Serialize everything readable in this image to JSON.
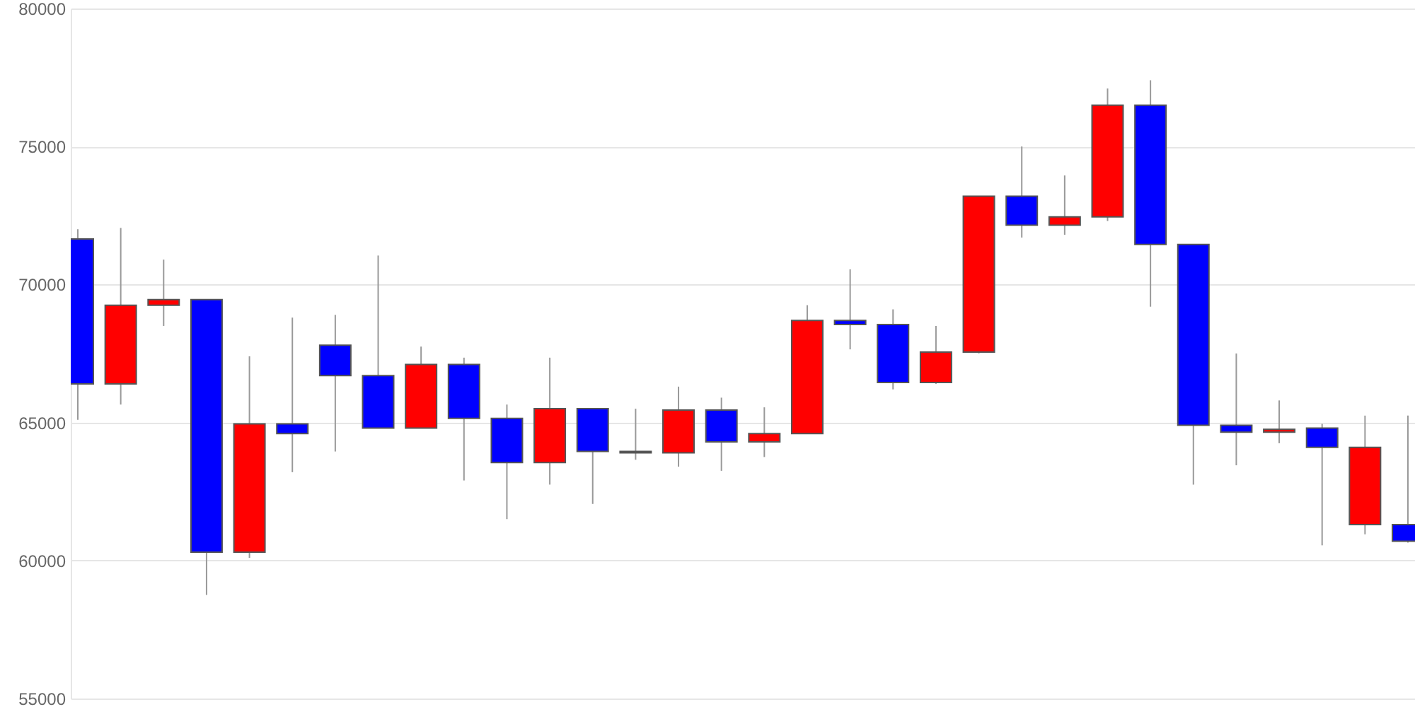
{
  "chart_data": {
    "type": "candlestick",
    "categories": [
      null,
      null,
      null,
      null,
      null,
      null,
      null,
      null,
      null,
      null,
      null,
      null,
      null,
      null,
      null,
      null,
      null,
      null,
      null,
      null,
      null,
      null,
      null,
      null,
      null,
      null,
      null,
      null,
      null,
      null,
      null,
      null
    ],
    "ohlc": [
      [
        71650,
        72000,
        65100,
        66400
      ],
      [
        66400,
        72050,
        65650,
        69250
      ],
      [
        69250,
        70900,
        68500,
        69450
      ],
      [
        69450,
        69450,
        58750,
        60300
      ],
      [
        60300,
        67400,
        60100,
        64950
      ],
      [
        64950,
        68800,
        63200,
        64600
      ],
      [
        67800,
        68900,
        63950,
        66700
      ],
      [
        66700,
        71050,
        64800,
        64800
      ],
      [
        64800,
        67750,
        64800,
        67100
      ],
      [
        67100,
        67350,
        62900,
        65150
      ],
      [
        65150,
        65650,
        61500,
        63550
      ],
      [
        63550,
        67350,
        62750,
        65500
      ],
      [
        65500,
        65500,
        62050,
        63950
      ],
      [
        63950,
        65500,
        63650,
        63900
      ],
      [
        63900,
        66300,
        63400,
        65450
      ],
      [
        65450,
        65900,
        63250,
        64300
      ],
      [
        64300,
        65550,
        63750,
        64600
      ],
      [
        64600,
        69250,
        64600,
        68700
      ],
      [
        68700,
        70550,
        67650,
        68550
      ],
      [
        68550,
        69100,
        66200,
        66450
      ],
      [
        66450,
        68500,
        66400,
        67550
      ],
      [
        67550,
        73200,
        67500,
        73200
      ],
      [
        73200,
        75000,
        71700,
        72150
      ],
      [
        72150,
        73950,
        71800,
        72450
      ],
      [
        72450,
        77100,
        72300,
        76500
      ],
      [
        76500,
        77400,
        69200,
        71450
      ],
      [
        71450,
        71450,
        62750,
        64900
      ],
      [
        64900,
        67500,
        63450,
        64650
      ],
      [
        64650,
        65800,
        64250,
        64750
      ],
      [
        64800,
        64950,
        60550,
        64100
      ],
      [
        61300,
        65250,
        60950,
        64100
      ],
      [
        61300,
        65250,
        60650,
        60700
      ]
    ],
    "colors": [
      "#0000ff",
      "#ff0000",
      "#ff0000",
      "#0000ff",
      "#ff0000",
      "#0000ff",
      "#0000ff",
      "#0000ff",
      "#ff0000",
      "#0000ff",
      "#0000ff",
      "#ff0000",
      "#0000ff",
      "#0000ff",
      "#ff0000",
      "#0000ff",
      "#ff0000",
      "#ff0000",
      "#0000ff",
      "#0000ff",
      "#ff0000",
      "#ff0000",
      "#0000ff",
      "#ff0000",
      "#ff0000",
      "#0000ff",
      "#0000ff",
      "#0000ff",
      "#ff0000",
      "#0000ff",
      "#ff0000",
      "#0000ff"
    ],
    "ylim": [
      55000,
      80000
    ],
    "yticks": [
      55000,
      60000,
      65000,
      70000,
      75000,
      80000
    ],
    "grid": "y",
    "tick_labels": "y"
  }
}
